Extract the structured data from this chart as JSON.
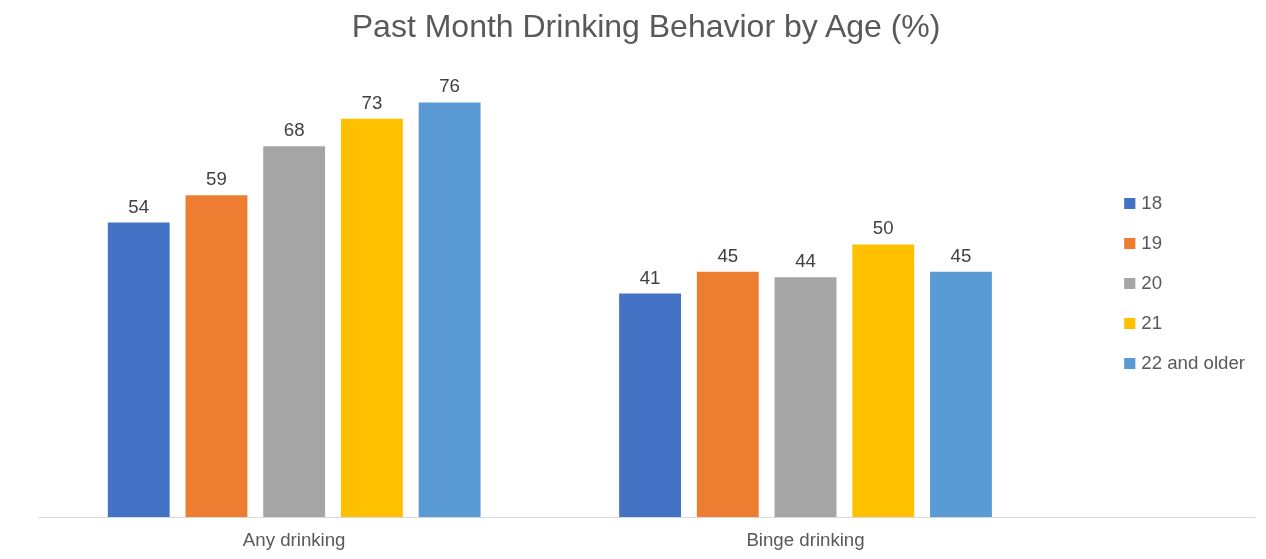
{
  "chart_data": {
    "type": "bar",
    "title": "Past Month Drinking Behavior by Age (%)",
    "categories": [
      "Any drinking",
      "Binge drinking"
    ],
    "series": [
      {
        "name": "18",
        "color": "#4472c4",
        "values": [
          54,
          41
        ]
      },
      {
        "name": "19",
        "color": "#ed7d31",
        "values": [
          59,
          45
        ]
      },
      {
        "name": "20",
        "color": "#a5a5a5",
        "values": [
          68,
          44
        ]
      },
      {
        "name": "21",
        "color": "#ffc000",
        "values": [
          73,
          50
        ]
      },
      {
        "name": "22 and older",
        "color": "#5b9bd5",
        "values": [
          76,
          45
        ]
      }
    ],
    "data_labels": true,
    "tick_labels": "x",
    "grid": false,
    "legend": "right"
  }
}
